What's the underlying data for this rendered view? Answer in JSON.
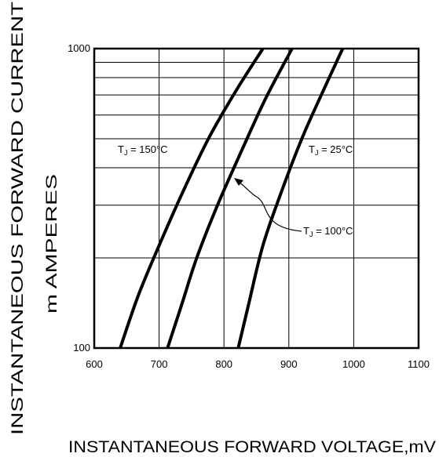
{
  "chart_data": {
    "type": "line",
    "title": "",
    "xlabel": "INSTANTANEOUS FORWARD VOLTAGE,mV",
    "ylabel_line1": "INSTANTANEOUS FORWARD CURRENT",
    "ylabel_line2": "m AMPERES",
    "xlim": [
      600,
      1100
    ],
    "ylim": [
      100,
      1000
    ],
    "y_scale": "log",
    "x_ticks": [
      600,
      700,
      800,
      900,
      1000,
      1100
    ],
    "x_tick_labels": [
      "600",
      "700",
      "800",
      "900",
      "1000",
      "1100"
    ],
    "y_tick_labels": [
      "100",
      "1000"
    ],
    "grid": true,
    "series": [
      {
        "name": "TJ = 150°C",
        "label_main": "T",
        "label_sub": "J",
        "label_rest": " = 150°C",
        "x": [
          640,
          668,
          700,
          736,
          776,
          818,
          860
        ],
        "y": [
          100,
          150,
          220,
          330,
          500,
          720,
          1000
        ]
      },
      {
        "name": "TJ = 100°C",
        "label_main": "T",
        "label_sub": "J",
        "label_rest": " = 100°C",
        "x": [
          713,
          735,
          758,
          790,
          826,
          864,
          905
        ],
        "y": [
          100,
          140,
          200,
          300,
          450,
          680,
          1000
        ]
      },
      {
        "name": "TJ = 25°C",
        "label_main": "T",
        "label_sub": "J",
        "label_rest": " = 25°C",
        "x": [
          822,
          838,
          860,
          888,
          920,
          950,
          983
        ],
        "y": [
          100,
          140,
          220,
          330,
          500,
          700,
          1000
        ]
      }
    ]
  }
}
